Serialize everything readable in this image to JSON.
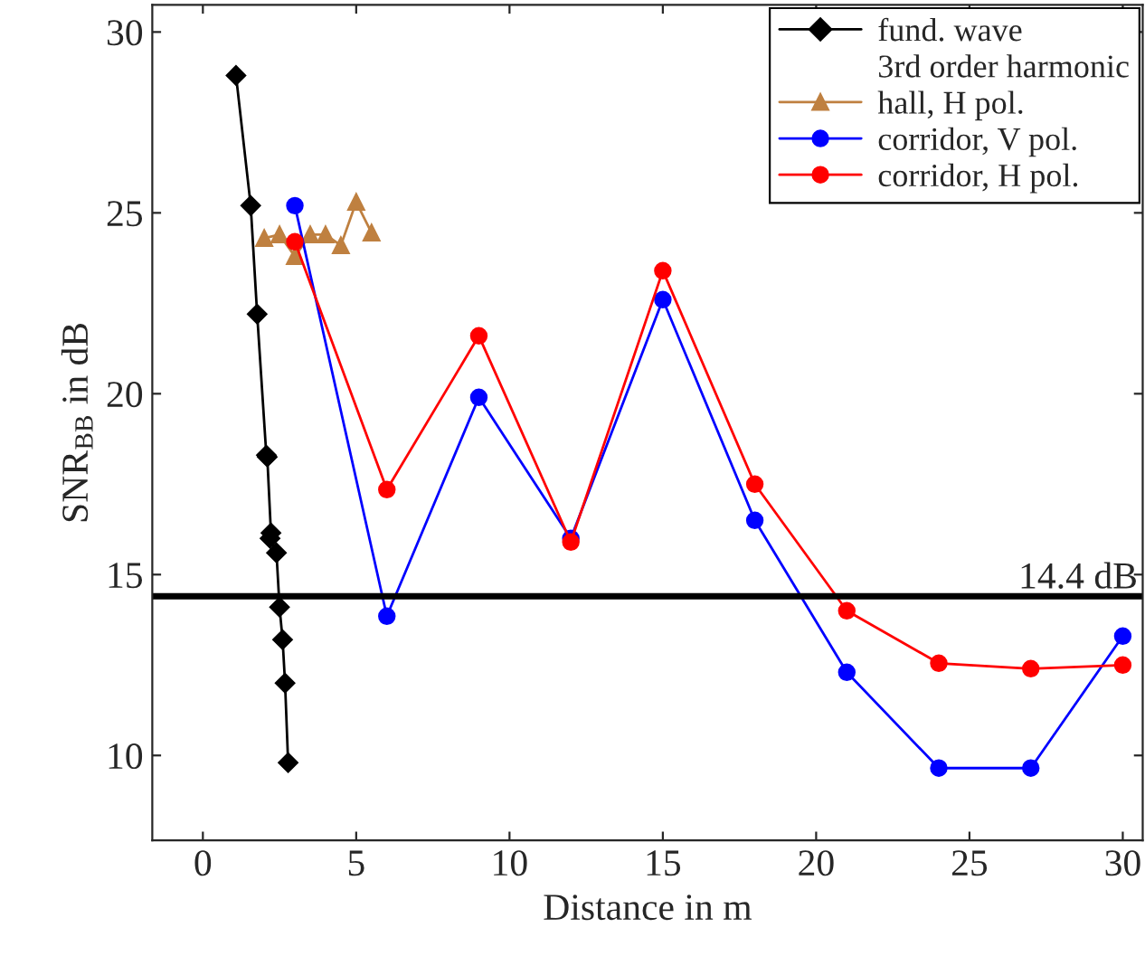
{
  "chart_data": {
    "type": "line",
    "xlabel": "Distance in m",
    "ylabel": "SNR$_{BB}$ in dB",
    "xlim": [
      -1.65,
      30.65
    ],
    "ylim": [
      7.65,
      30.75
    ],
    "xticks": [
      0,
      5,
      10,
      15,
      20,
      25,
      30
    ],
    "yticks": [
      10,
      15,
      20,
      25,
      30
    ],
    "grid": false,
    "legend": "top right",
    "annotations": [
      "3rd order harmonic"
    ],
    "ref_lines": [
      {
        "axis": "y",
        "value": 14.4,
        "label": "14.4 dB",
        "color": "#000000",
        "line_style": "solid"
      }
    ],
    "series": [
      {
        "name": "fund. wave",
        "color": "#000000",
        "marker": "diamond",
        "x": [
          1.08,
          1.56,
          1.77,
          2.07,
          2.1,
          2.22,
          2.19,
          2.4,
          2.5,
          2.6,
          2.68,
          2.78
        ],
        "values": [
          28.8,
          25.2,
          22.2,
          18.3,
          18.25,
          16.15,
          16.0,
          15.6,
          14.1,
          13.2,
          12.0,
          9.8
        ]
      },
      {
        "name": "hall, H pol.",
        "color": "#bf8040",
        "marker": "triangle",
        "x": [
          2,
          2.5,
          3,
          3.5,
          4,
          4.5,
          5,
          5.5
        ],
        "values": [
          24.3,
          24.4,
          23.8,
          24.4,
          24.4,
          24.1,
          25.3,
          24.45
        ]
      },
      {
        "name": "corridor, V pol.",
        "color": "#0000ff",
        "marker": "circle",
        "x": [
          3,
          6,
          9,
          12,
          15,
          18,
          21,
          24,
          27,
          30
        ],
        "values": [
          25.2,
          13.85,
          19.9,
          16.0,
          22.6,
          16.5,
          12.3,
          9.65,
          9.65,
          13.3
        ]
      },
      {
        "name": "corridor, H pol.",
        "color": "#ff0000",
        "marker": "circle",
        "x": [
          3,
          6,
          9,
          12,
          15,
          18,
          21,
          24,
          27,
          30
        ],
        "values": [
          24.2,
          17.35,
          21.6,
          15.9,
          23.4,
          17.5,
          14.0,
          12.55,
          12.4,
          12.5
        ]
      }
    ]
  }
}
